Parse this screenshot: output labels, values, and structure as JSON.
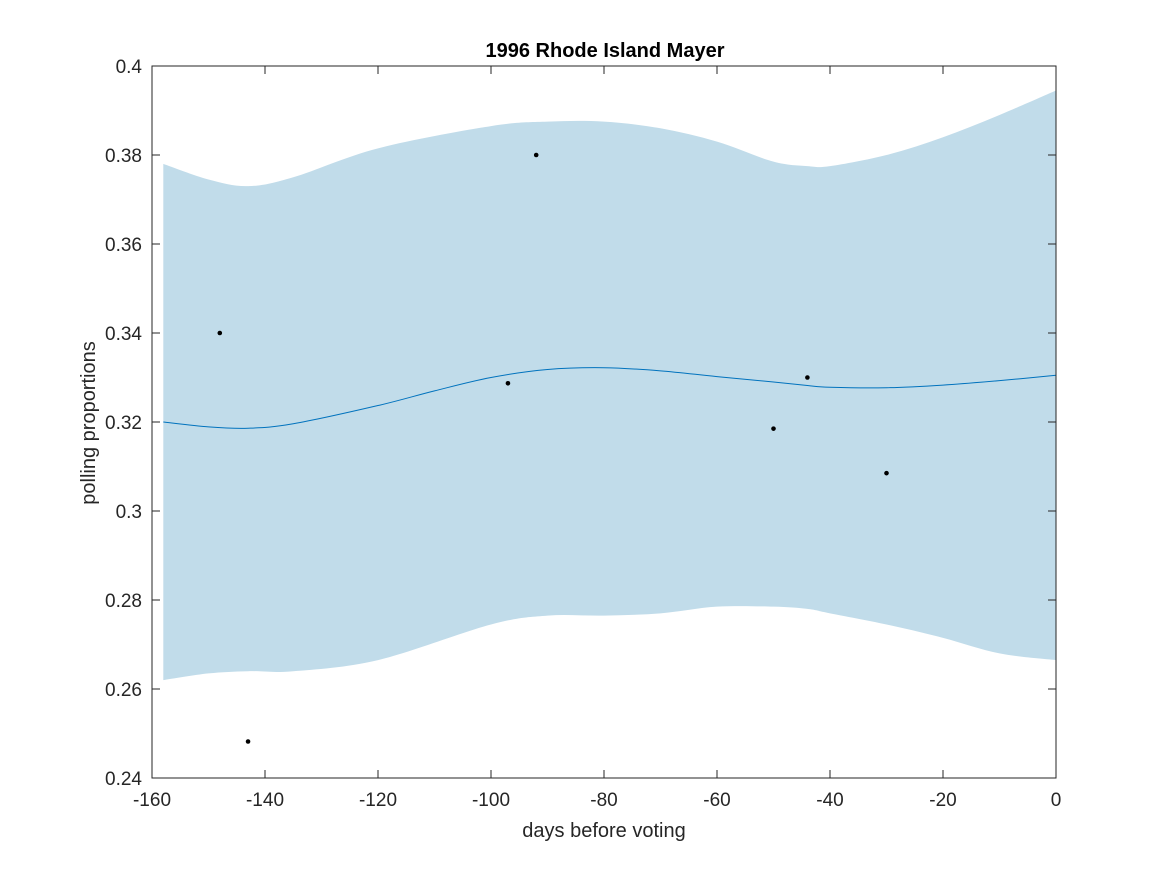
{
  "chart_data": {
    "type": "line",
    "title": "1996 Rhode Island Mayer",
    "xlabel": "days before voting",
    "ylabel": "polling proportions",
    "xlim": [
      -160,
      0
    ],
    "ylim": [
      0.24,
      0.4
    ],
    "xticks": [
      -160,
      -140,
      -120,
      -100,
      -80,
      -60,
      -40,
      -20,
      0
    ],
    "xtick_labels": [
      "-160",
      "-140",
      "-120",
      "-100",
      "-80",
      "-60",
      "-40",
      "-20",
      "0"
    ],
    "yticks": [
      0.24,
      0.26,
      0.28,
      0.3,
      0.32,
      0.34,
      0.36,
      0.38,
      0.4
    ],
    "ytick_labels": [
      "0.24",
      "0.26",
      "0.28",
      "0.3",
      "0.32",
      "0.34",
      "0.36",
      "0.38",
      "0.4"
    ],
    "grid": false,
    "colors": {
      "band": "#c1dcea",
      "line": "#0072bd",
      "points": "#000000",
      "axes": "#262626"
    },
    "series": [
      {
        "kind": "band",
        "x": [
          -158,
          -150,
          -143,
          -135,
          -120,
          -100,
          -90,
          -80,
          -70,
          -60,
          -50,
          -44,
          -40,
          -30,
          -20,
          -10,
          0
        ],
        "upper": [
          0.378,
          0.3745,
          0.373,
          0.375,
          0.3815,
          0.3865,
          0.3875,
          0.3875,
          0.386,
          0.383,
          0.3785,
          0.3775,
          0.3775,
          0.38,
          0.384,
          0.389,
          0.3945
        ],
        "lower": [
          0.262,
          0.2635,
          0.264,
          0.264,
          0.2665,
          0.2745,
          0.2765,
          0.2765,
          0.277,
          0.2785,
          0.2785,
          0.278,
          0.277,
          0.2745,
          0.2715,
          0.268,
          0.2665
        ]
      },
      {
        "kind": "line",
        "x": [
          -158,
          -150,
          -143,
          -135,
          -120,
          -110,
          -100,
          -90,
          -80,
          -70,
          -60,
          -50,
          -44,
          -40,
          -30,
          -20,
          -10,
          0
        ],
        "y": [
          0.32,
          0.3189,
          0.3186,
          0.3196,
          0.3237,
          0.327,
          0.33,
          0.3318,
          0.3322,
          0.3315,
          0.3302,
          0.329,
          0.3282,
          0.3278,
          0.3277,
          0.3283,
          0.3293,
          0.3305
        ]
      },
      {
        "kind": "scatter",
        "x": [
          -148,
          -143,
          -97,
          -92,
          -50,
          -44,
          -30
        ],
        "y": [
          0.34,
          0.2482,
          0.3287,
          0.38,
          0.3185,
          0.33,
          0.3085
        ]
      }
    ]
  }
}
